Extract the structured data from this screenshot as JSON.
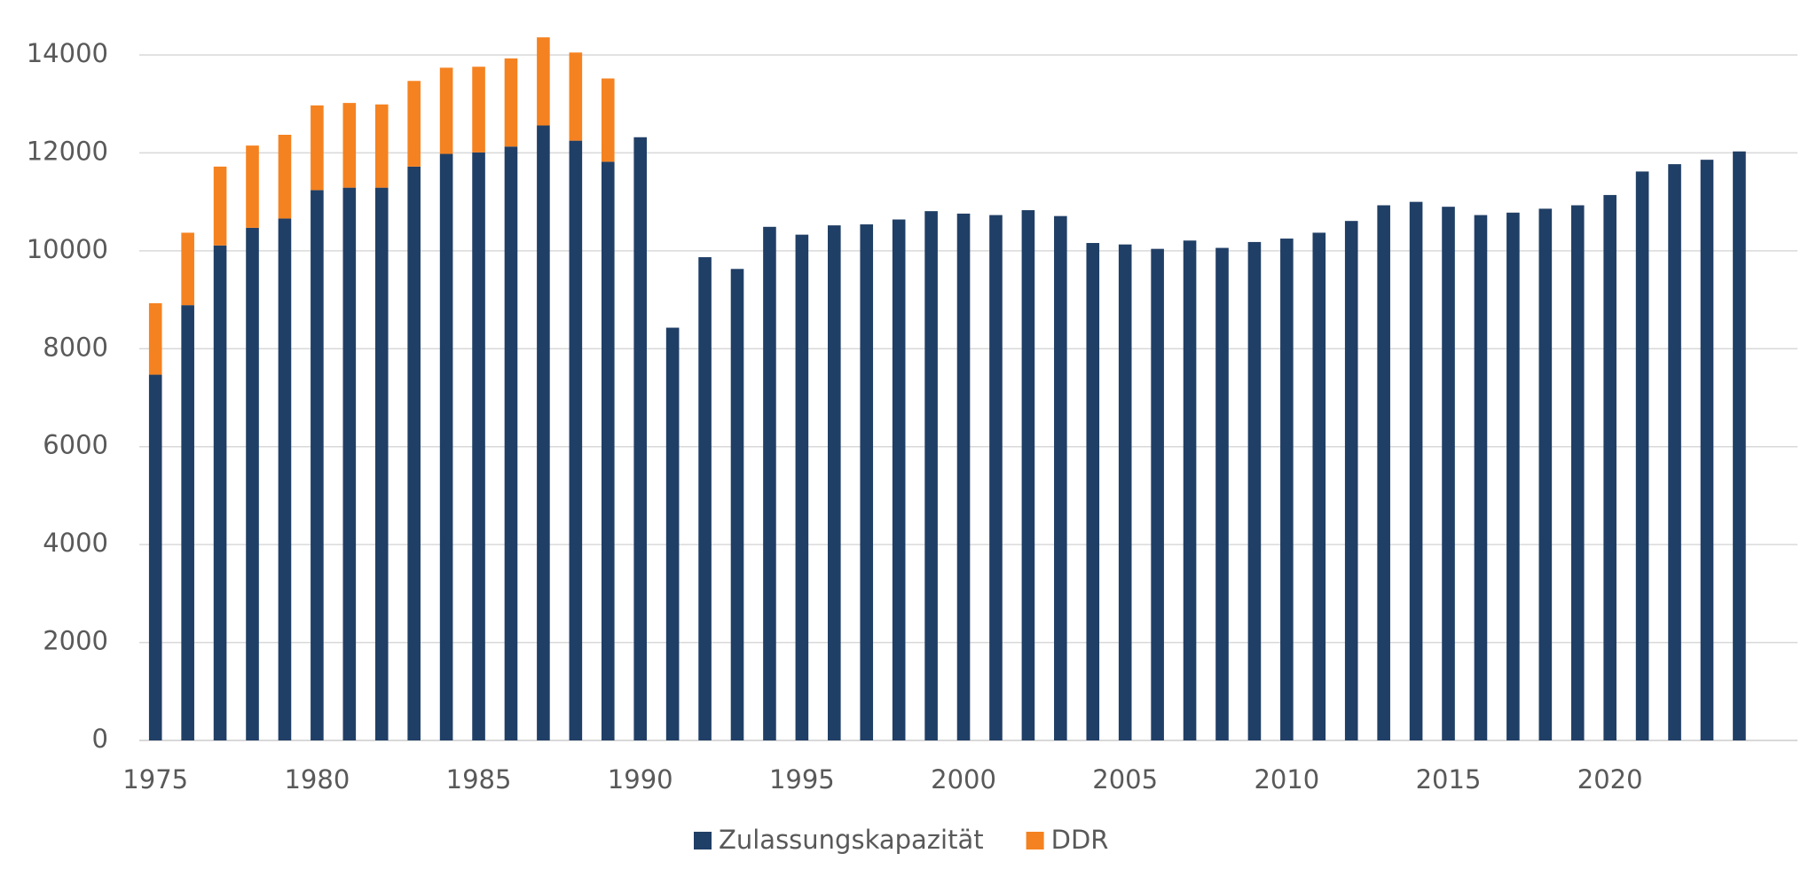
{
  "chart_data": {
    "type": "bar",
    "stacked": true,
    "x": [
      1975,
      1976,
      1977,
      1978,
      1979,
      1980,
      1981,
      1982,
      1983,
      1984,
      1985,
      1986,
      1987,
      1988,
      1989,
      1990,
      1991,
      1992,
      1993,
      1994,
      1995,
      1996,
      1997,
      1998,
      1999,
      2000,
      2001,
      2002,
      2003,
      2004,
      2005,
      2006,
      2007,
      2008,
      2009,
      2010,
      2011,
      2012,
      2013,
      2014,
      2015,
      2016,
      2017,
      2018,
      2019,
      2020,
      2021,
      2022,
      2023,
      2024
    ],
    "series": [
      {
        "name": "Zulassungskapazität",
        "color": "#203f66",
        "values": [
          7470,
          8890,
          10110,
          10470,
          10660,
          11240,
          11290,
          11290,
          11720,
          11980,
          12010,
          12130,
          12560,
          12250,
          11820,
          12320,
          8430,
          9870,
          9630,
          10490,
          10330,
          10520,
          10540,
          10640,
          10810,
          10760,
          10730,
          10830,
          10710,
          10160,
          10130,
          10040,
          10210,
          10060,
          10180,
          10250,
          10370,
          10610,
          10930,
          11000,
          10900,
          10730,
          10780,
          10860,
          10930,
          11140,
          11620,
          11770,
          11860,
          12030
        ]
      },
      {
        "name": "DDR",
        "color": "#f58220",
        "values": [
          1460,
          1480,
          1610,
          1680,
          1710,
          1730,
          1730,
          1700,
          1750,
          1760,
          1750,
          1800,
          1800,
          1800,
          1700,
          null,
          null,
          null,
          null,
          null,
          null,
          null,
          null,
          null,
          null,
          null,
          null,
          null,
          null,
          null,
          null,
          null,
          null,
          null,
          null,
          null,
          null,
          null,
          null,
          null,
          null,
          null,
          null,
          null,
          null,
          null,
          null,
          null,
          null,
          null
        ]
      }
    ],
    "xlim": [
      1974.5,
      2025.8
    ],
    "xticks": [
      1975,
      1980,
      1985,
      1990,
      1995,
      2000,
      2005,
      2010,
      2015,
      2020
    ],
    "ylim": [
      0,
      14000
    ],
    "yticks": [
      0,
      2000,
      4000,
      6000,
      8000,
      10000,
      12000,
      14000
    ],
    "grid": true,
    "legend": "bottom"
  }
}
